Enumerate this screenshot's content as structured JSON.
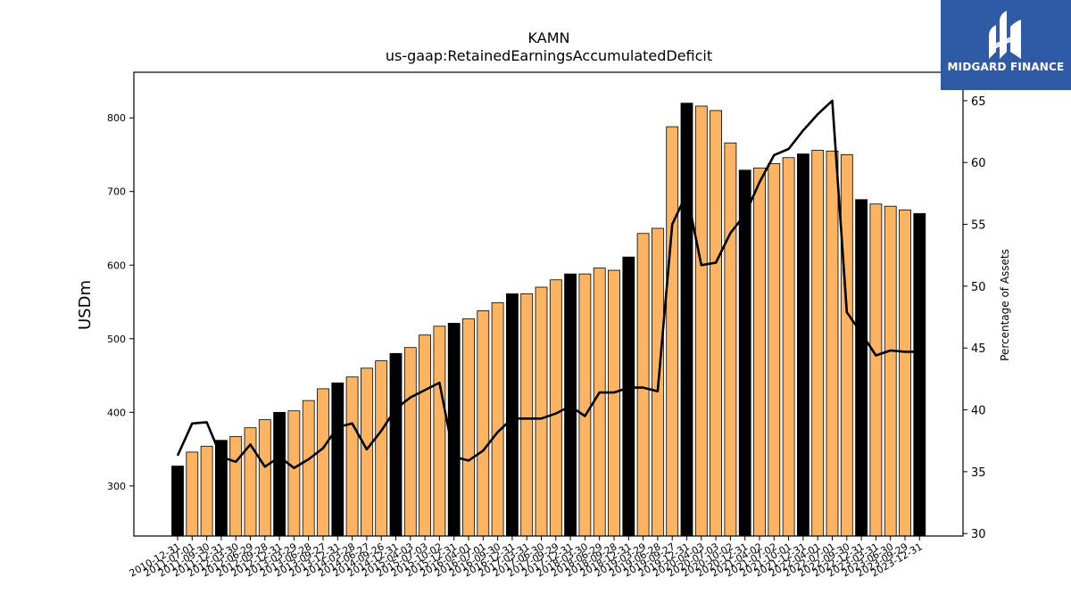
{
  "logo": {
    "text": "MIDGARD FINANCE",
    "color": "#2f5aa6"
  },
  "chart_data": {
    "type": "bar",
    "title": "KAMN",
    "subtitle": "us-gaap:RetainedEarningsAccumulatedDeficit",
    "ylabel": "USDm",
    "y2label": "Percentage of Assets",
    "ylim": [
      232,
      862
    ],
    "y2lim": [
      29.8,
      67.3
    ],
    "yticks": [
      300,
      400,
      500,
      600,
      700,
      800
    ],
    "y2ticks": [
      30,
      35,
      40,
      45,
      50,
      55,
      60,
      65
    ],
    "colors": {
      "annual": "#000000",
      "quarter": "#fdb462",
      "line": "#000000"
    },
    "categories": [
      "2010-12-31",
      "2011-07-01",
      "2011-09-30",
      "2011-12-31",
      "2012-03-30",
      "2012-06-29",
      "2012-09-28",
      "2012-12-31",
      "2013-03-29",
      "2013-06-28",
      "2013-09-27",
      "2013-12-31",
      "2014-03-28",
      "2014-06-27",
      "2014-09-26",
      "2014-12-31",
      "2015-04-03",
      "2015-07-03",
      "2015-10-02",
      "2015-12-31",
      "2016-04-01",
      "2016-07-01",
      "2016-09-30",
      "2016-12-31",
      "2017-03-31",
      "2017-06-30",
      "2017-09-29",
      "2017-12-31",
      "2018-03-30",
      "2018-06-29",
      "2018-09-28",
      "2018-12-31",
      "2019-03-29",
      "2019-06-28",
      "2019-09-27",
      "2019-12-31",
      "2020-04-03",
      "2020-07-03",
      "2020-10-02",
      "2020-12-31",
      "2021-04-02",
      "2021-07-02",
      "2021-10-01",
      "2021-12-31",
      "2022-04-01",
      "2022-07-01",
      "2022-09-30",
      "2022-12-31",
      "2023-03-31",
      "2023-06-30",
      "2023-09-29",
      "2023-12-31"
    ],
    "values": [
      327,
      346,
      354,
      362,
      367,
      379,
      390,
      400,
      402,
      416,
      432,
      440,
      448,
      460,
      470,
      480,
      488,
      505,
      517,
      521,
      527,
      538,
      549,
      561,
      561,
      570,
      580,
      588,
      588,
      596,
      593,
      611,
      643,
      650,
      788,
      820,
      816,
      810,
      766,
      729,
      732,
      738,
      746,
      751,
      756,
      755,
      750,
      689,
      683,
      680,
      675,
      670
    ],
    "annual_flags": [
      true,
      false,
      false,
      true,
      false,
      false,
      false,
      true,
      false,
      false,
      false,
      true,
      false,
      false,
      false,
      true,
      false,
      false,
      false,
      true,
      false,
      false,
      false,
      true,
      false,
      false,
      false,
      true,
      false,
      false,
      false,
      true,
      false,
      false,
      false,
      true,
      false,
      false,
      false,
      true,
      false,
      false,
      false,
      true,
      false,
      false,
      false,
      true,
      false,
      false,
      false,
      true
    ],
    "line_series": {
      "name": "",
      "values": [
        36.3,
        38.9,
        39.0,
        36.2,
        35.8,
        37.2,
        35.4,
        36.2,
        35.3,
        36.0,
        36.9,
        38.6,
        38.9,
        36.8,
        38.3,
        40.1,
        41.0,
        41.6,
        42.2,
        36.2,
        35.9,
        36.7,
        38.2,
        39.3,
        39.3,
        39.3,
        39.7,
        40.3,
        39.5,
        41.4,
        41.4,
        41.8,
        41.8,
        41.5,
        55.0,
        57.5,
        51.7,
        51.9,
        54.3,
        55.8,
        58.4,
        60.6,
        61.1,
        62.6,
        63.9,
        65.0,
        47.9,
        46.2,
        44.4,
        44.8,
        44.7,
        44.7
      ]
    }
  }
}
